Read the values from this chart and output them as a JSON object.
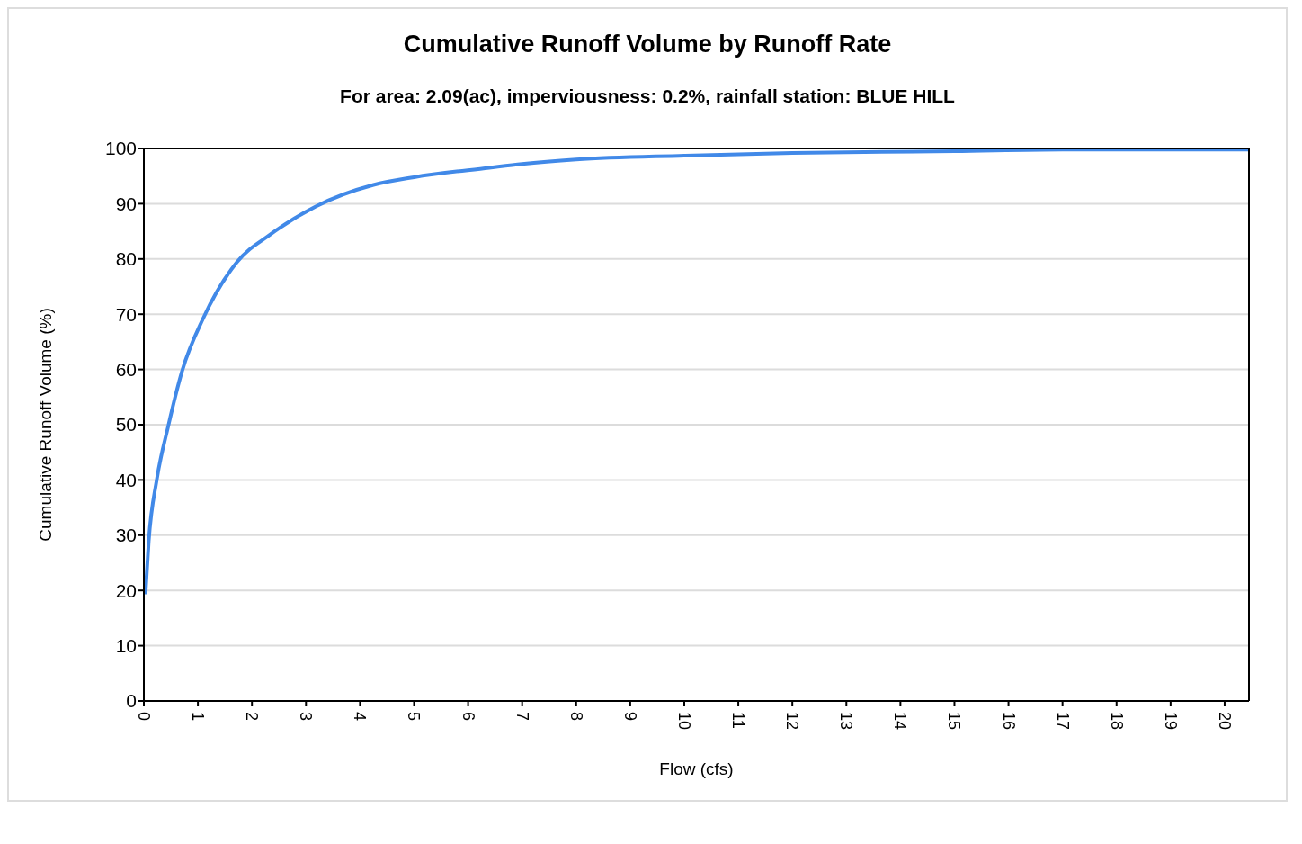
{
  "chart_data": {
    "type": "line",
    "title": "Cumulative Runoff Volume by Runoff Rate",
    "subtitle": "For area: 2.09(ac), imperviousness: 0.2%, rainfall station: BLUE HILL",
    "xlabel": "Flow (cfs)",
    "ylabel": "Cumulative Runoff Volume (%)",
    "x": [
      0.03,
      0.09,
      0.24,
      0.45,
      0.71,
      1.1,
      1.72,
      2.35,
      3.18,
      4.25,
      5,
      6.39,
      7,
      8,
      10,
      12,
      15,
      17,
      20.45
    ],
    "series": [
      {
        "color": "#4189e8",
        "values": [
          19.3,
          28.9,
          40.1,
          49.7,
          59.8,
          69.3,
          79.4,
          84.5,
          89.5,
          93.4,
          94.8,
          96.5,
          97.2,
          98,
          98.7,
          99.2,
          99.5,
          99.8,
          99.8
        ]
      }
    ],
    "xlim": [
      0,
      20.45
    ],
    "xticks": [
      0,
      1,
      2,
      3,
      4,
      5,
      6,
      7,
      8,
      9,
      10,
      11,
      12,
      13,
      14,
      15,
      16,
      17,
      18,
      19,
      20
    ],
    "ylim": [
      0,
      100
    ],
    "yticks": [
      0,
      10,
      20,
      30,
      40,
      50,
      60,
      70,
      80,
      90,
      100
    ],
    "grid": "y",
    "marker": "none",
    "line_style": "solid"
  }
}
